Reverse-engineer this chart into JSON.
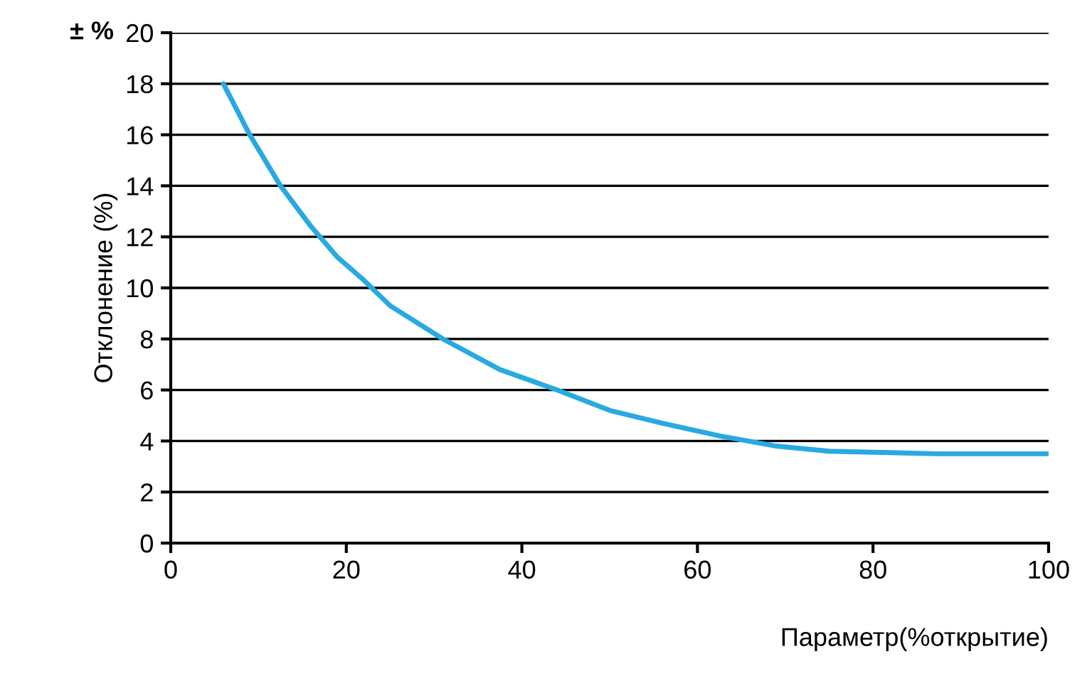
{
  "chart_data": {
    "type": "line",
    "xlabel": "Параметр(%открытие)",
    "ylabel": "Отклонение (%)",
    "annotations": [
      "± %"
    ],
    "x": [
      6,
      9,
      12.5,
      16,
      19,
      22,
      25,
      31,
      37.5,
      44,
      50,
      56,
      62.5,
      69,
      75,
      87.5,
      100
    ],
    "series": [
      {
        "color": "#29a9e1",
        "values": [
          18,
          16,
          14,
          12.4,
          11.2,
          10.3,
          9.3,
          8.0,
          6.8,
          6.0,
          5.2,
          4.7,
          4.2,
          3.8,
          3.6,
          3.5,
          3.5
        ]
      }
    ],
    "xlim": [
      0,
      100
    ],
    "ylim": [
      0,
      20
    ],
    "xticks": [
      0,
      20,
      40,
      60,
      80,
      100
    ],
    "yticks": [
      0,
      2,
      4,
      6,
      8,
      10,
      12,
      14,
      16,
      18,
      20
    ],
    "grid": "y",
    "marker": "none",
    "line_style": "solid"
  }
}
